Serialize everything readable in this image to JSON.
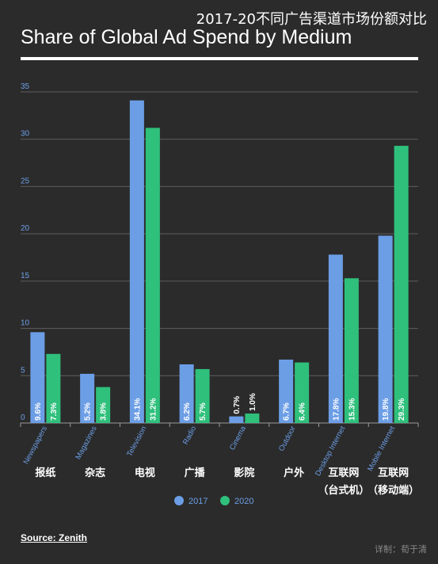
{
  "header": {
    "cn_title": "2017-20不同广告渠道市场份额对比",
    "title": "Share of Global Ad Spend by Medium"
  },
  "colors": {
    "background": "#2b2b2b",
    "series_2017": "#6c9ee6",
    "series_2020": "#2fc07c",
    "tick_label": "#6c9ee6",
    "grid": "#5e5e5e"
  },
  "chart_data": {
    "type": "bar",
    "categories": [
      "Newspapers",
      "Magazines",
      "Television",
      "Radio",
      "Cinema",
      "Outdoor",
      "Desktop Internet",
      "Mobile Internet"
    ],
    "categories_cn": [
      "报纸",
      "杂志",
      "电视",
      "广播",
      "影院",
      "户外",
      "互联网\n（台式机）",
      "互联网\n（移动端）"
    ],
    "series": [
      {
        "name": "2017",
        "values": [
          9.6,
          5.2,
          34.1,
          6.2,
          0.7,
          6.7,
          17.8,
          19.8
        ],
        "labels": [
          "9.6%",
          "5.2%",
          "34.1%",
          "6.2%",
          "0.7%",
          "6.7%",
          "17.8%",
          "19.8%"
        ]
      },
      {
        "name": "2020",
        "values": [
          7.3,
          3.8,
          31.2,
          5.7,
          1.0,
          6.4,
          15.3,
          29.3
        ],
        "labels": [
          "7.3%",
          "3.8%",
          "31.2%",
          "5.7%",
          "1.0%",
          "6.4%",
          "15.3%",
          "29.3%"
        ]
      }
    ],
    "yticks": [
      0,
      5,
      10,
      15,
      20,
      25,
      30,
      35
    ],
    "ylim": [
      0,
      35
    ],
    "grid": true,
    "legend_position": "bottom-center",
    "xlabel": "",
    "ylabel": ""
  },
  "footer": {
    "source": "Source: Zenith",
    "credit": "详制：荀于清"
  }
}
